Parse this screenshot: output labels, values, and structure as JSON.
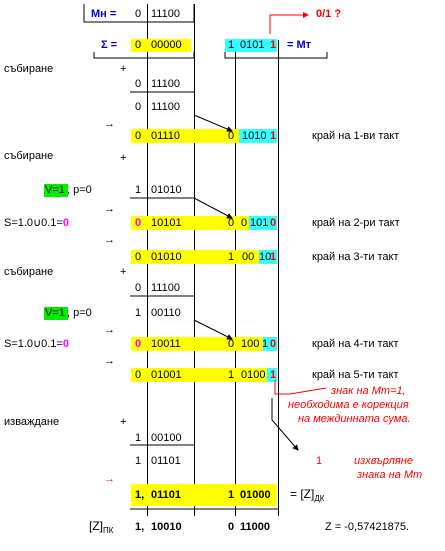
{
  "header": {
    "mn_label": "Мн =",
    "mn_sign": "0",
    "mn_value": "11100",
    "sigma_label": "Σ =",
    "sigma_sign": "0",
    "sigma_value": "00000",
    "mt_sign": "1",
    "mt_value": "0101",
    "mt_lastbit": "1",
    "mt_label": "= Мт",
    "question": "0/1 ?"
  },
  "rows": [
    {
      "id": "r1",
      "label": "събиране",
      "plus": "+"
    },
    {
      "id": "r2",
      "sign": "0",
      "value": "11100"
    },
    {
      "id": "r3",
      "sign": "0",
      "value": "11100"
    },
    {
      "id": "r4",
      "sign": "0",
      "value": "01110",
      "mt_sign": "0",
      "mt_value": "1010",
      "mt_last": "1",
      "end": "край на 1-ви такт"
    },
    {
      "id": "r5",
      "label": "събиране",
      "plus": "+"
    },
    {
      "id": "r6",
      "vflag": "V=1",
      "p": ", p=0",
      "sign": "1",
      "value": "01010"
    },
    {
      "id": "r7",
      "s_text": "S=1.0",
      "s_union": "∪",
      "s_rest": "0.1=",
      "s_zero": "0",
      "sign": "0",
      "value": "10101",
      "mt_sign": "0",
      "mt_pre": "0",
      "mt_value": "101",
      "mt_last": "0",
      "end": "край на 2-ри такт"
    },
    {
      "id": "r8",
      "sign": "0",
      "value": "01010",
      "mt_sign": "1",
      "mt_pre": "00",
      "mt_value": "10",
      "mt_last": "1",
      "end": "край на 3-ти такт"
    },
    {
      "id": "r9",
      "label": "събиране",
      "plus": "+",
      "sign": "0",
      "value": "11100"
    },
    {
      "id": "r10",
      "vflag": "V=1",
      "p": ", p=0",
      "sign": "1",
      "value": "00110"
    },
    {
      "id": "r11",
      "s_text": "S=1.0",
      "s_union": "∪",
      "s_rest": "0.1=",
      "s_zero": "0",
      "sign": "0",
      "value": "10011",
      "mt_sign": "0",
      "mt_pre": "100",
      "mt_value": "1",
      "mt_last": "0",
      "end": "край на 4-ти такт"
    },
    {
      "id": "r12",
      "sign": "0",
      "value": "01001",
      "mt_sign": "1",
      "mt_pre": "0100",
      "mt_last": "1",
      "end": "край на 5-ти такт"
    },
    {
      "id": "r13",
      "label": "изваждане",
      "plus": "+",
      "sign": "1",
      "value": "00100"
    },
    {
      "id": "r14",
      "sign": "1",
      "value": "01101"
    },
    {
      "id": "r15",
      "sign": "1,",
      "value": "01101",
      "mt_sign": "1",
      "mt_value": "01000",
      "result": "= [Z]",
      "result_sub": "ДК"
    }
  ],
  "notes": {
    "mt_note_1": "знак на Мт=1,",
    "mt_note_2": "необходима е корекция",
    "mt_note_3": "на междинната сума.",
    "one": "1",
    "restore_1": "изхвърляне",
    "restore_2": "знака на Мт"
  },
  "footer": {
    "zpk_label": "[Z]",
    "zpk_sub": "ПК",
    "zpk_sign": "1,",
    "zpk_value": "10010",
    "zpk_mt_sign": "0",
    "zpk_mt_value": "11000",
    "z_text": "Z =  -0,57421875."
  },
  "arrow_symbol": "→",
  "colors": {
    "yellow": "#ffff00",
    "cyan": "#33ffff",
    "green": "#00ee00",
    "blue": "#0000cc",
    "magenta": "#ff00ff",
    "red": "#ff0000"
  }
}
